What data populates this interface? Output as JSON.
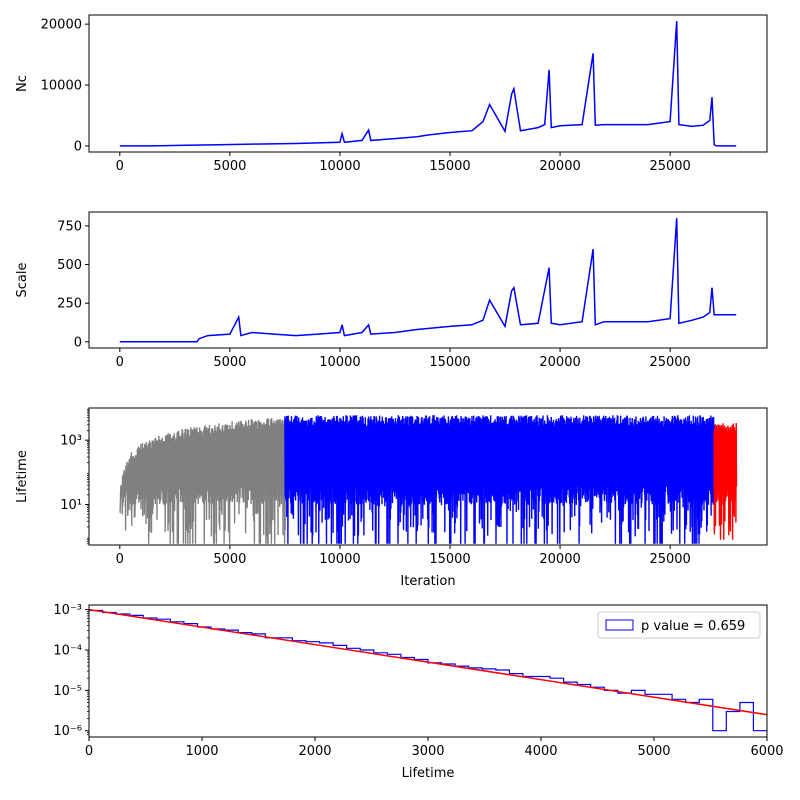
{
  "chart_data": [
    {
      "type": "line",
      "ylabel": "Nc",
      "xlim": [
        -1400,
        29400
      ],
      "ylim": [
        -1000,
        21500
      ],
      "xticks": [
        0,
        5000,
        10000,
        15000,
        20000,
        25000
      ],
      "xtick_labels": [
        "0",
        "5000",
        "10000",
        "15000",
        "20000",
        "25000"
      ],
      "yticks": [
        0,
        10000,
        20000
      ],
      "ytick_labels": [
        "0",
        "10000",
        "20000"
      ],
      "series": [
        {
          "color": "#0000ff",
          "x": [
            0,
            1500,
            3000,
            4500,
            6000,
            8000,
            10000,
            10100,
            10200,
            11000,
            11300,
            11400,
            12500,
            13500,
            14000,
            15000,
            16000,
            16500,
            16800,
            17500,
            17800,
            17900,
            18000,
            18200,
            19000,
            19300,
            19500,
            19600,
            20000,
            21000,
            21500,
            21600,
            22000,
            23000,
            24000,
            25000,
            25300,
            25400,
            26000,
            26500,
            26800,
            26900,
            27000,
            27100,
            28000
          ],
          "y": [
            0,
            0,
            100,
            200,
            300,
            400,
            600,
            2000,
            600,
            900,
            2600,
            900,
            1200,
            1500,
            1800,
            2200,
            2500,
            4000,
            6800,
            2400,
            8500,
            9400,
            7000,
            2500,
            3000,
            3500,
            12500,
            3000,
            3300,
            3500,
            15200,
            3400,
            3500,
            3500,
            3500,
            4000,
            20500,
            3500,
            3200,
            3400,
            4200,
            8000,
            200,
            0,
            0
          ]
        }
      ]
    },
    {
      "type": "line",
      "ylabel": "Scale",
      "xlim": [
        -1400,
        29400
      ],
      "ylim": [
        -40,
        840
      ],
      "xticks": [
        0,
        5000,
        10000,
        15000,
        20000,
        25000
      ],
      "xtick_labels": [
        "0",
        "5000",
        "10000",
        "15000",
        "20000",
        "25000"
      ],
      "yticks": [
        0,
        250,
        500,
        750
      ],
      "ytick_labels": [
        "0",
        "250",
        "500",
        "750"
      ],
      "series": [
        {
          "color": "#0000ff",
          "x": [
            0,
            3500,
            3600,
            4000,
            5000,
            5400,
            5500,
            6000,
            7000,
            8000,
            9000,
            10000,
            10100,
            10200,
            11000,
            11300,
            11400,
            12500,
            13500,
            15000,
            16000,
            16500,
            16800,
            17500,
            17800,
            17900,
            18200,
            19000,
            19500,
            19600,
            20000,
            21000,
            21500,
            21600,
            22000,
            23000,
            24000,
            25000,
            25300,
            25400,
            26000,
            26500,
            26800,
            26900,
            27000,
            28000
          ],
          "y": [
            0,
            0,
            20,
            40,
            50,
            160,
            40,
            60,
            50,
            40,
            50,
            60,
            110,
            40,
            60,
            110,
            50,
            60,
            80,
            100,
            110,
            140,
            270,
            100,
            330,
            350,
            110,
            120,
            480,
            120,
            110,
            130,
            600,
            110,
            130,
            130,
            130,
            150,
            800,
            120,
            140,
            160,
            190,
            350,
            175,
            175
          ]
        }
      ]
    },
    {
      "type": "line",
      "ylabel": "Lifetime",
      "xlabel": "Iteration",
      "yscale": "log",
      "xlim": [
        -1400,
        29400
      ],
      "ylim": [
        0.55,
        10000
      ],
      "xticks": [
        0,
        5000,
        10000,
        15000,
        20000,
        25000
      ],
      "xtick_labels": [
        "0",
        "5000",
        "10000",
        "15000",
        "20000",
        "25000"
      ],
      "yticks": [
        10,
        1000
      ],
      "ytick_labels": [
        "10¹",
        "10³"
      ],
      "series": [
        {
          "color": "#808080",
          "x_range": [
            0,
            7500
          ],
          "upper_envelope": [
            [
              0,
              10
            ],
            [
              200,
              150
            ],
            [
              500,
              400
            ],
            [
              1000,
              800
            ],
            [
              2000,
              1600
            ],
            [
              3000,
              2400
            ],
            [
              4000,
              3000
            ],
            [
              5000,
              3800
            ],
            [
              6000,
              4500
            ],
            [
              7000,
              5000
            ],
            [
              7500,
              5500
            ]
          ],
          "lower": 0.6
        },
        {
          "color": "#0000ff",
          "x_range": [
            7500,
            27000
          ],
          "upper": 6000,
          "lower": 0.6
        },
        {
          "color": "#ff0000",
          "x_range": [
            27000,
            28000
          ],
          "upper": 3500,
          "lower": 0.8
        }
      ]
    },
    {
      "type": "histogram",
      "xlabel": "Lifetime",
      "yscale": "log",
      "xlim": [
        0,
        6000
      ],
      "ylim": [
        7e-07,
        0.0013
      ],
      "xticks": [
        0,
        1000,
        2000,
        3000,
        4000,
        5000,
        6000
      ],
      "xtick_labels": [
        "0",
        "1000",
        "2000",
        "3000",
        "4000",
        "5000",
        "6000"
      ],
      "yticks": [
        1e-06,
        1e-05,
        0.0001,
        0.001
      ],
      "ytick_labels": [
        "10⁻⁶",
        "10⁻⁵",
        "10⁻⁴",
        "10⁻³"
      ],
      "legend": {
        "label": "p value = 0.659",
        "placement": "top-right"
      },
      "histogram": {
        "color": "#0000ff",
        "bin_edges": [
          0,
          120,
          240,
          360,
          480,
          600,
          720,
          840,
          960,
          1080,
          1200,
          1320,
          1440,
          1560,
          1680,
          1800,
          1920,
          2040,
          2160,
          2280,
          2400,
          2520,
          2640,
          2760,
          2880,
          3000,
          3120,
          3240,
          3360,
          3480,
          3600,
          3720,
          3840,
          3960,
          4080,
          4200,
          4320,
          4440,
          4560,
          4680,
          4800,
          4920,
          5040,
          5160,
          5280,
          5400,
          5520,
          5640,
          5760,
          5880,
          6000
        ],
        "values": [
          0.00095,
          0.00085,
          0.00078,
          0.00072,
          0.00062,
          0.00058,
          0.0005,
          0.00045,
          0.00037,
          0.00033,
          0.00031,
          0.00027,
          0.00025,
          0.0002,
          0.0002,
          0.00017,
          0.00016,
          0.00015,
          0.00013,
          0.00011,
          0.0001,
          8.5e-05,
          7.8e-05,
          6.5e-05,
          5.8e-05,
          4.8e-05,
          4.5e-05,
          4e-05,
          3.6e-05,
          3.4e-05,
          3.2e-05,
          2.6e-05,
          2.2e-05,
          2.2e-05,
          2e-05,
          1.6e-05,
          1.4e-05,
          1.2e-05,
          1e-05,
          8.5e-06,
          1e-05,
          8e-06,
          8e-06,
          6e-06,
          5e-06,
          6e-06,
          1e-06,
          3e-06,
          5e-06,
          1e-06
        ]
      },
      "fit": {
        "color": "#ff0000",
        "x": [
          0,
          6000
        ],
        "y": [
          0.001,
          2.5e-06
        ]
      }
    }
  ]
}
